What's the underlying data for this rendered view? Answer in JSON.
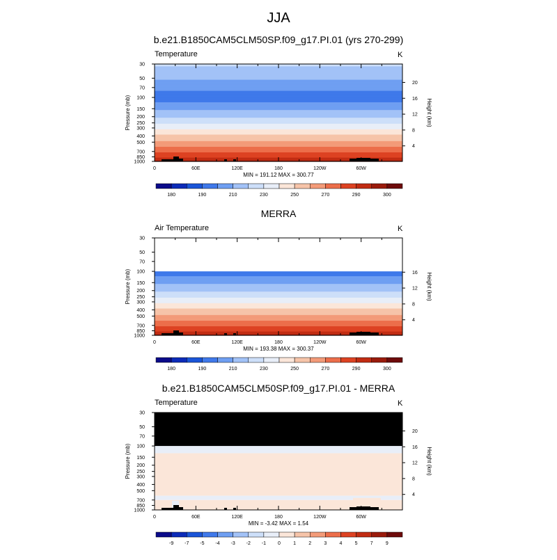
{
  "page": {
    "main_title": "JJA"
  },
  "palette": {
    "temperature": [
      "#0b0b8a",
      "#0c2bb8",
      "#1a55d8",
      "#3f79ea",
      "#6f9ff2",
      "#a2c2f7",
      "#cddff9",
      "#e8eef8",
      "#fbe6d9",
      "#f6c4a9",
      "#f39b79",
      "#ec6e4a",
      "#dd4222",
      "#c12c12",
      "#9a1b0c",
      "#6e0b0b"
    ],
    "difference": [
      "#0b0b8a",
      "#0c2bb8",
      "#1a55d8",
      "#3f79ea",
      "#6f9ff2",
      "#a2c2f7",
      "#cddff9",
      "#e8eef8",
      "#fbe6d9",
      "#f6c4a9",
      "#f39b79",
      "#ec6e4a",
      "#dd4222",
      "#c12c12",
      "#9a1b0c",
      "#6e0b0b"
    ],
    "missing": "#000000",
    "below_data": "#ffffff"
  },
  "chart_data": [
    {
      "type": "heatmap",
      "title": "b.e21.B1850CAM5CLM50SP.f09_g17.PI.01 (yrs 270-299)",
      "left_label": "Temperature",
      "units": "K",
      "ylabel": "Pressure (mb)",
      "ylabel_right": "Height (km)",
      "pressure_ticks": [
        30,
        50,
        70,
        100,
        150,
        200,
        250,
        300,
        400,
        500,
        700,
        850,
        1000
      ],
      "height_ticks": [
        4,
        8,
        12,
        16,
        20
      ],
      "x_ticks": [
        "0",
        "60E",
        "120E",
        "180",
        "120W",
        "60W"
      ],
      "min_max_text": "MIN = 191.12  MAX = 300.77",
      "colorbar_labels": [
        "180",
        "190",
        "210",
        "230",
        "250",
        "270",
        "290",
        "300"
      ],
      "profile": [
        {
          "p": 30,
          "value": 222
        },
        {
          "p": 50,
          "value": 212
        },
        {
          "p": 70,
          "value": 202
        },
        {
          "p": 100,
          "value": 196
        },
        {
          "p": 130,
          "value": 202
        },
        {
          "p": 150,
          "value": 208
        },
        {
          "p": 200,
          "value": 218
        },
        {
          "p": 250,
          "value": 228
        },
        {
          "p": 300,
          "value": 238
        },
        {
          "p": 400,
          "value": 252
        },
        {
          "p": 500,
          "value": 262
        },
        {
          "p": 700,
          "value": 278
        },
        {
          "p": 850,
          "value": 288
        },
        {
          "p": 1000,
          "value": 296
        }
      ],
      "data_top_p": 30,
      "overlay_top_p": null,
      "terrain": true
    },
    {
      "type": "heatmap",
      "title": "MERRA",
      "left_label": "Air Temperature",
      "units": "K",
      "ylabel": "Pressure (mb)",
      "ylabel_right": "Height (km)",
      "pressure_ticks": [
        30,
        50,
        70,
        100,
        150,
        200,
        250,
        300,
        400,
        500,
        700,
        850,
        1000
      ],
      "height_ticks": [
        4,
        8,
        12,
        16
      ],
      "x_ticks": [
        "0",
        "60E",
        "120E",
        "180",
        "120W",
        "60W"
      ],
      "min_max_text": "MIN = 193.38  MAX = 300.37",
      "colorbar_labels": [
        "180",
        "190",
        "210",
        "230",
        "250",
        "270",
        "290",
        "300"
      ],
      "profile": [
        {
          "p": 100,
          "value": 196
        },
        {
          "p": 130,
          "value": 202
        },
        {
          "p": 150,
          "value": 208
        },
        {
          "p": 200,
          "value": 218
        },
        {
          "p": 250,
          "value": 228
        },
        {
          "p": 300,
          "value": 238
        },
        {
          "p": 400,
          "value": 252
        },
        {
          "p": 500,
          "value": 262
        },
        {
          "p": 700,
          "value": 278
        },
        {
          "p": 850,
          "value": 288
        },
        {
          "p": 1000,
          "value": 296
        }
      ],
      "data_top_p": 100,
      "overlay_top_p": null,
      "terrain": true
    },
    {
      "type": "heatmap",
      "title": "b.e21.B1850CAM5CLM50SP.f09_g17.PI.01 - MERRA",
      "left_label": "Temperature",
      "units": "K",
      "ylabel": "Pressure (mb)",
      "ylabel_right": "Height (km)",
      "pressure_ticks": [
        30,
        50,
        70,
        100,
        150,
        200,
        250,
        300,
        400,
        500,
        700,
        850,
        1000
      ],
      "height_ticks": [
        4,
        8,
        12,
        16,
        20
      ],
      "x_ticks": [
        "0",
        "60E",
        "120E",
        "180",
        "120W",
        "60W"
      ],
      "min_max_text": "MIN =  -3.42  MAX =   1.54",
      "colorbar_labels": [
        "-9",
        "-7",
        "-5",
        "-4",
        "-3",
        "-2",
        "-1",
        "0",
        "1",
        "2",
        "3",
        "4",
        "5",
        "7",
        "9"
      ],
      "difference_bands": [
        {
          "p_top": 100,
          "p_bottom": 130,
          "value": -0.5
        },
        {
          "p_top": 130,
          "p_bottom": 600,
          "value": 0.5
        },
        {
          "p_top": 600,
          "p_bottom": 700,
          "value": -0.5
        },
        {
          "p_top": 700,
          "p_bottom": 1000,
          "value": 0.5
        }
      ],
      "data_top_p": 100,
      "overlay_top_p": 30,
      "terrain": true
    }
  ]
}
